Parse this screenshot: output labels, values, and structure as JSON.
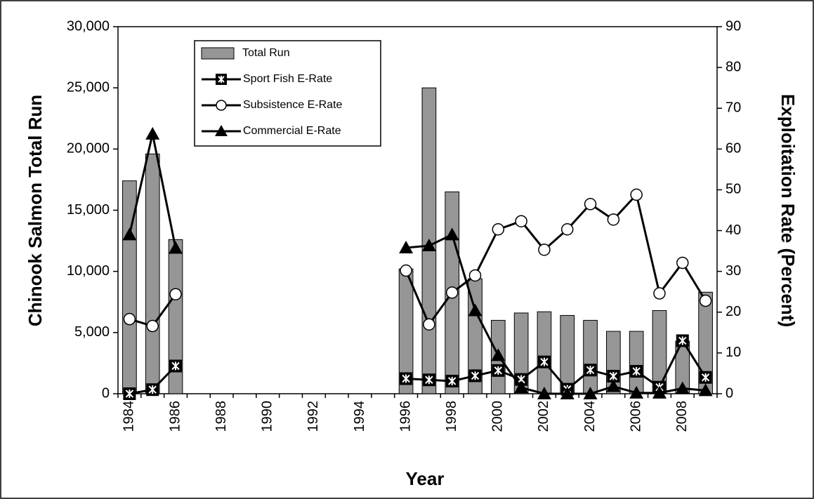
{
  "chart_data": {
    "type": "bar+line",
    "x_label": "Year",
    "y_label": "Chinook Salmon Total Run",
    "y2_label": "Exploitation Rate (Percent)",
    "categories": [
      "1984",
      null,
      "1986",
      null,
      "1988",
      null,
      "1990",
      null,
      "1992",
      null,
      "1994",
      null,
      "1996",
      null,
      "1998",
      null,
      "2000",
      null,
      "2002",
      null,
      "2004",
      null,
      "2006",
      null,
      "2008",
      null
    ],
    "series": [
      {
        "name": "Total Run",
        "type": "bar",
        "color": "#969696",
        "values": [
          17400,
          19600,
          12600,
          null,
          null,
          null,
          null,
          null,
          null,
          null,
          null,
          null,
          10200,
          25000,
          16500,
          9400,
          6000,
          6600,
          6700,
          6400,
          6000,
          5100,
          5100,
          6800,
          4300,
          8300
        ]
      },
      {
        "name": "Sport Fish E-Rate",
        "type": "line",
        "axis": "y2",
        "marker": "square-x",
        "color": "#000000",
        "values": [
          0,
          1,
          6.8,
          null,
          null,
          null,
          null,
          null,
          null,
          null,
          null,
          null,
          3.7,
          3.4,
          3.1,
          4.4,
          5.7,
          3.5,
          7.8,
          1.1,
          5.8,
          4.3,
          5.5,
          1.6,
          13,
          4
        ]
      },
      {
        "name": "Subsistence E-Rate",
        "type": "line",
        "axis": "y2",
        "marker": "circle",
        "color": "#000000",
        "values": [
          18.3,
          16.6,
          24.4,
          null,
          null,
          null,
          null,
          null,
          null,
          null,
          null,
          null,
          30.2,
          17,
          24.8,
          29,
          40.3,
          42.3,
          35.3,
          40.3,
          46.5,
          42.7,
          48.8,
          24.6,
          32.1,
          22.8
        ]
      },
      {
        "name": "Commercial E-Rate",
        "type": "line",
        "axis": "y2",
        "marker": "triangle",
        "color": "#000000",
        "values": [
          39,
          63.7,
          35.7,
          null,
          null,
          null,
          null,
          null,
          null,
          null,
          null,
          null,
          35.8,
          36.3,
          39,
          20.4,
          9.4,
          1.5,
          0,
          0,
          0,
          1.8,
          0.2,
          0.2,
          1.3,
          0.8
        ]
      }
    ],
    "ylim": [
      0,
      30000
    ],
    "yticks": [
      0,
      {
        "value": 5000,
        "label": "5,000"
      },
      {
        "value": 10000,
        "label": "10,000"
      },
      {
        "value": 15000,
        "label": "15,000"
      },
      {
        "value": 20000,
        "label": "20,000"
      },
      {
        "value": 25000,
        "label": "25,000"
      },
      {
        "value": 30000,
        "label": "30,000"
      }
    ],
    "y2lim": [
      0,
      90
    ],
    "y2ticks": [
      0,
      10,
      20,
      30,
      40,
      50,
      60,
      70,
      80,
      90
    ]
  }
}
